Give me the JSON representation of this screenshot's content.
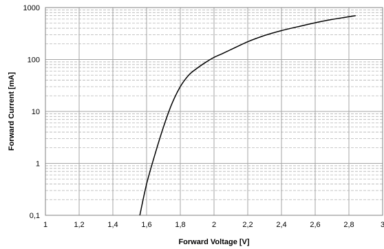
{
  "chart_data": {
    "type": "line",
    "title": "",
    "xlabel": "Forward Voltage [V]",
    "ylabel": "Forward Current [mA]",
    "xlim": [
      1,
      3
    ],
    "ylim": [
      0.1,
      1000
    ],
    "yscale": "log",
    "grid": true,
    "minor_grid": true,
    "x_ticks": [
      1,
      1.2,
      1.4,
      1.6,
      1.8,
      2,
      2.2,
      2.4,
      2.6,
      2.8,
      3
    ],
    "x_tick_labels": [
      "1",
      "1,2",
      "1,4",
      "1,6",
      "1,8",
      "2",
      "2,2",
      "2,4",
      "2,6",
      "2,8",
      "3"
    ],
    "y_ticks": [
      0.1,
      1,
      10,
      100,
      1000
    ],
    "y_tick_labels": [
      "0,1",
      "1",
      "10",
      "100",
      "1000"
    ],
    "series": [
      {
        "color": "#000000",
        "x": [
          1.56,
          1.6,
          1.65,
          1.7,
          1.75,
          1.8,
          1.85,
          1.9,
          1.95,
          2.0,
          2.05,
          2.1,
          2.2,
          2.3,
          2.4,
          2.5,
          2.6,
          2.7,
          2.78,
          2.84
        ],
        "y": [
          0.1,
          0.4,
          1.5,
          5,
          14,
          30,
          50,
          68,
          88,
          110,
          130,
          155,
          220,
          290,
          360,
          430,
          510,
          590,
          650,
          700
        ]
      }
    ]
  }
}
